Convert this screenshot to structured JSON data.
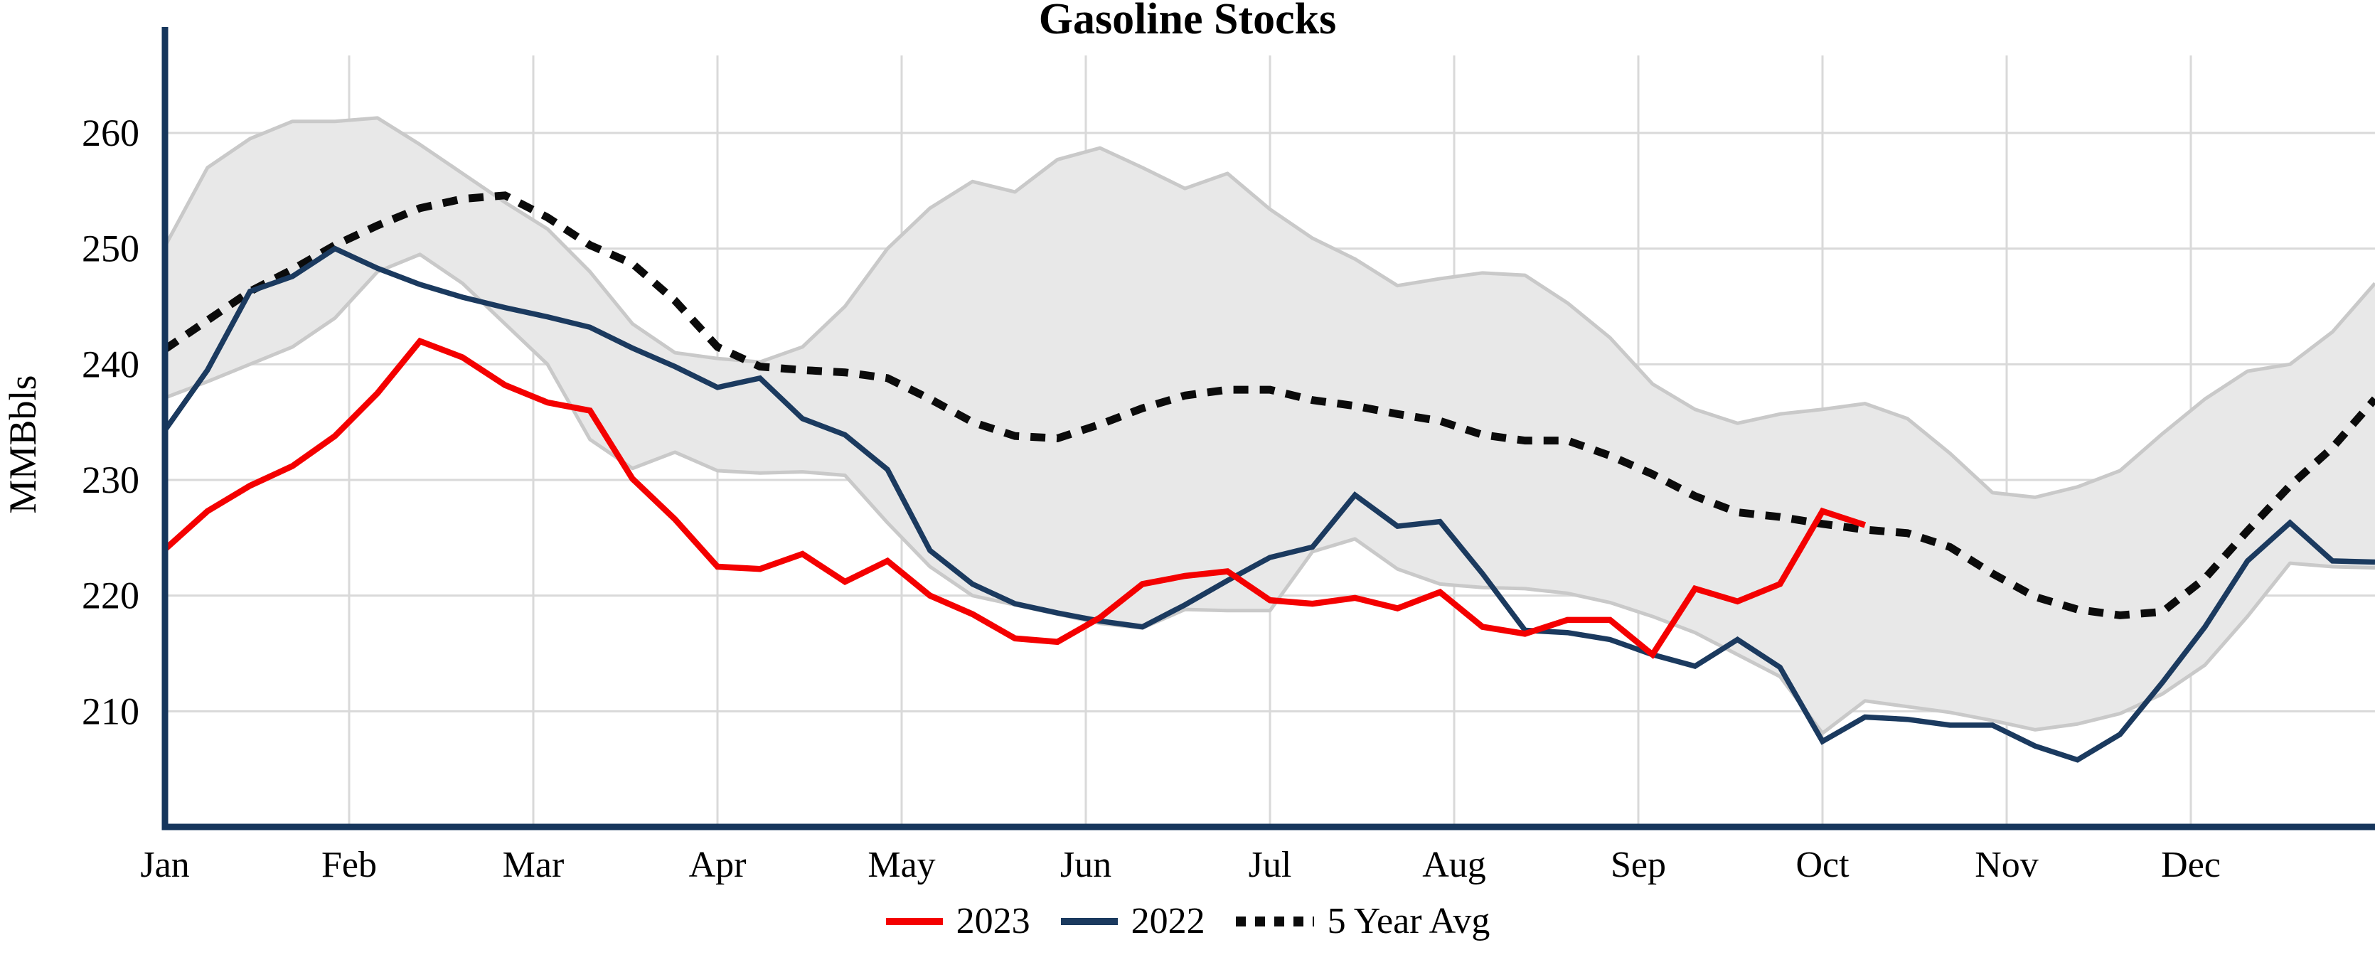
{
  "chart_data": {
    "type": "line",
    "title": "Gasoline Stocks",
    "ylabel": "MMBbls",
    "x_tick_labels": [
      "Jan",
      "Feb",
      "Mar",
      "Apr",
      "May",
      "Jun",
      "Jul",
      "Aug",
      "Sep",
      "Oct",
      "Nov",
      "Dec"
    ],
    "y_ticks": [
      210,
      220,
      230,
      240,
      250,
      260
    ],
    "y_range": [
      200.0,
      266.7
    ],
    "x_weeks_total": 52,
    "grid": true,
    "legend_position": "bottom-center",
    "colors": {
      "red": "#f40000",
      "navy": "#1b3a5f",
      "black": "#0b0b0b",
      "band_fill": "#e8e8e8",
      "band_edge": "#c9c9c9",
      "grid": "#d9d9d9",
      "axis": "#16365c",
      "text": "#000000"
    },
    "band": {
      "name": "5-year range",
      "upper": [
        250.2,
        257.0,
        259.5,
        261.0,
        261.0,
        261.3,
        259.0,
        256.5,
        254.0,
        251.7,
        248.0,
        243.5,
        241.0,
        240.5,
        240.2,
        241.5,
        245.0,
        250.0,
        253.5,
        255.8,
        254.9,
        257.7,
        258.7,
        257.0,
        255.2,
        256.5,
        253.4,
        250.9,
        249.1,
        246.8,
        247.4,
        247.9,
        247.7,
        245.3,
        242.3,
        238.3,
        236.1,
        234.9,
        235.7,
        236.1,
        236.6,
        235.3,
        232.3,
        228.9,
        228.5,
        229.4,
        230.8,
        234.0,
        237.0,
        239.4,
        240.0,
        242.8,
        247.0
      ],
      "lower": [
        237.1,
        238.5,
        240.0,
        241.5,
        244.0,
        248.0,
        249.5,
        247.0,
        243.5,
        240.0,
        233.5,
        231.0,
        232.4,
        230.8,
        230.6,
        230.7,
        230.4,
        226.3,
        222.5,
        220.0,
        219.2,
        218.4,
        217.6,
        217.2,
        218.8,
        218.7,
        218.7,
        223.8,
        224.9,
        222.3,
        221.0,
        220.7,
        220.6,
        220.2,
        219.4,
        218.2,
        216.8,
        214.9,
        213.0,
        208.1,
        210.9,
        210.4,
        209.9,
        209.2,
        208.4,
        208.9,
        209.8,
        211.5,
        214.0,
        218.2,
        222.8,
        222.5,
        222.4
      ]
    },
    "series": [
      {
        "name": "5 Year Avg",
        "color_key": "black",
        "dash": [
          21,
          16
        ],
        "width": 11,
        "values": [
          241.3,
          243.8,
          246.3,
          248.2,
          250.3,
          252.0,
          253.5,
          254.3,
          254.6,
          252.7,
          250.3,
          248.7,
          245.5,
          241.5,
          239.8,
          239.5,
          239.3,
          238.8,
          237.0,
          235.0,
          233.8,
          233.6,
          234.8,
          236.2,
          237.3,
          237.8,
          237.8,
          236.9,
          236.4,
          235.7,
          235.1,
          233.9,
          233.4,
          233.4,
          232.1,
          230.5,
          228.6,
          227.2,
          226.8,
          226.2,
          225.7,
          225.4,
          224.2,
          221.9,
          219.9,
          218.8,
          218.3,
          218.6,
          221.5,
          225.6,
          229.5,
          232.8,
          237.0
        ]
      },
      {
        "name": "2022",
        "color_key": "navy",
        "dash": null,
        "width": 7.5,
        "values": [
          234.3,
          239.5,
          246.3,
          247.6,
          250.0,
          248.3,
          246.9,
          245.8,
          244.9,
          244.1,
          243.2,
          241.4,
          239.8,
          238.0,
          238.8,
          235.3,
          233.9,
          230.9,
          223.9,
          221.0,
          219.3,
          218.5,
          217.8,
          217.3,
          219.2,
          221.3,
          223.3,
          224.2,
          228.7,
          226.0,
          226.4,
          221.9,
          217.0,
          216.8,
          216.2,
          214.9,
          213.9,
          216.2,
          213.8,
          207.4,
          209.5,
          209.3,
          208.8,
          208.8,
          207.0,
          205.8,
          208.0,
          212.5,
          217.3,
          223.0,
          226.3,
          223.0,
          222.9
        ]
      },
      {
        "name": "2023",
        "color_key": "red",
        "dash": null,
        "width": 8.5,
        "values": [
          224.0,
          227.3,
          229.5,
          231.2,
          233.8,
          237.5,
          242.0,
          240.6,
          238.2,
          236.7,
          236.0,
          230.1,
          226.6,
          222.5,
          222.3,
          223.6,
          221.2,
          223.0,
          220.0,
          218.4,
          216.3,
          216.0,
          218.1,
          221.0,
          221.7,
          222.1,
          219.6,
          219.3,
          219.8,
          218.9,
          220.3,
          217.3,
          216.7,
          217.9,
          217.9,
          214.9,
          220.6,
          219.5,
          221.0,
          227.3,
          226.1
        ]
      }
    ],
    "legend": [
      {
        "label": "2023",
        "color_key": "red",
        "dash": null
      },
      {
        "label": "2022",
        "color_key": "navy",
        "dash": null
      },
      {
        "label": "5 Year Avg",
        "color_key": "black",
        "dash": [
          14,
          13
        ]
      }
    ]
  }
}
